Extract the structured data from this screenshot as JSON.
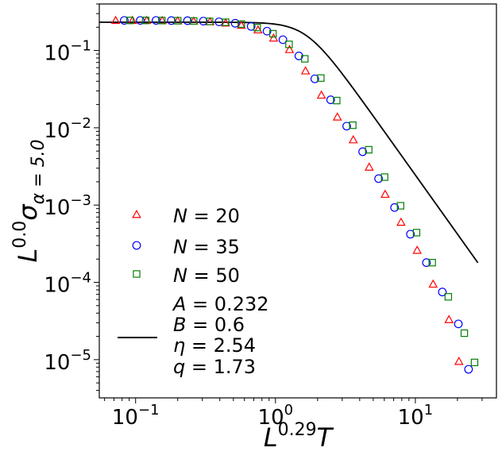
{
  "chart_data": {
    "type": "scatter",
    "xscale": "log",
    "yscale": "log",
    "xlim": [
      0.055,
      38
    ],
    "ylim": [
      3.2e-06,
      0.4
    ],
    "x_ticks": [
      {
        "value": 0.1,
        "mantissa": "10",
        "exponent": "−1"
      },
      {
        "value": 1,
        "mantissa": "10",
        "exponent": "0"
      },
      {
        "value": 10,
        "mantissa": "10",
        "exponent": "1"
      }
    ],
    "y_ticks": [
      {
        "value": 0.1,
        "mantissa": "10",
        "exponent": "−1"
      },
      {
        "value": 0.01,
        "mantissa": "10",
        "exponent": "−2"
      },
      {
        "value": 0.001,
        "mantissa": "10",
        "exponent": "−3"
      },
      {
        "value": 0.0001,
        "mantissa": "10",
        "exponent": "−4"
      },
      {
        "value": 1e-05,
        "mantissa": "10",
        "exponent": "−5"
      }
    ],
    "xlabel": {
      "base": "L",
      "sup": "0.29",
      "tail": "T"
    },
    "ylabel": {
      "base": "L",
      "sup": "0.0",
      "sym": "σ",
      "sub": "α = 5.0"
    },
    "series": [
      {
        "name": "N = 20",
        "label_var": "N",
        "label_val": "20",
        "marker": "triangle",
        "color": "#ff0000",
        "x": [
          0.072,
          0.095,
          0.12,
          0.155,
          0.2,
          0.26,
          0.34,
          0.44,
          0.57,
          0.75,
          0.97,
          1.26,
          1.64,
          2.13,
          2.77,
          3.6,
          4.68,
          6.08,
          7.9,
          10.3,
          13.4,
          17.4,
          20.5
        ],
        "y": [
          0.245,
          0.245,
          0.245,
          0.244,
          0.242,
          0.24,
          0.236,
          0.227,
          0.212,
          0.185,
          0.145,
          0.103,
          0.0545,
          0.0265,
          0.0138,
          0.007,
          0.0031,
          0.00138,
          0.0006,
          0.00026,
          9.5e-05,
          3.3e-05,
          9.5e-06
        ]
      },
      {
        "name": "N = 35",
        "label_var": "N",
        "label_val": "35",
        "marker": "circle",
        "color": "#0000ff",
        "x": [
          0.083,
          0.108,
          0.14,
          0.18,
          0.235,
          0.305,
          0.395,
          0.515,
          0.67,
          0.87,
          1.13,
          1.47,
          1.91,
          2.48,
          3.23,
          4.2,
          5.46,
          7.1,
          9.22,
          12.0,
          15.6,
          20.3,
          24.0
        ],
        "y": [
          0.245,
          0.245,
          0.245,
          0.244,
          0.243,
          0.24,
          0.235,
          0.225,
          0.205,
          0.178,
          0.138,
          0.085,
          0.043,
          0.023,
          0.0105,
          0.0049,
          0.0022,
          0.00093,
          0.00042,
          0.00018,
          7.5e-05,
          2.9e-05,
          7.5e-06
        ]
      },
      {
        "name": "N = 50",
        "label_var": "N",
        "label_val": "50",
        "marker": "square",
        "color": "#008000",
        "x": [
          0.091,
          0.118,
          0.154,
          0.2,
          0.26,
          0.338,
          0.44,
          0.57,
          0.74,
          0.96,
          1.25,
          1.62,
          2.11,
          2.74,
          3.57,
          4.64,
          6.03,
          7.84,
          10.2,
          13.2,
          17.2,
          22.4,
          26.5
        ],
        "y": [
          0.245,
          0.245,
          0.244,
          0.243,
          0.241,
          0.238,
          0.232,
          0.22,
          0.198,
          0.165,
          0.12,
          0.078,
          0.044,
          0.0225,
          0.0108,
          0.0052,
          0.0023,
          0.00098,
          0.00044,
          0.00018,
          6.5e-05,
          2.2e-05,
          9.2e-06
        ]
      }
    ],
    "fit": {
      "type": "line",
      "color": "#000000",
      "params": {
        "A": 0.232,
        "B": 0.6,
        "eta": 2.54,
        "q": 1.73
      },
      "x_range": [
        0.055,
        28
      ],
      "labels": [
        {
          "var": "A",
          "val": "0.232"
        },
        {
          "var": "B",
          "val": "0.6"
        },
        {
          "var": "η",
          "val": "2.54"
        },
        {
          "var": "q",
          "val": "1.73"
        }
      ]
    },
    "legend_position": "lower-left"
  }
}
